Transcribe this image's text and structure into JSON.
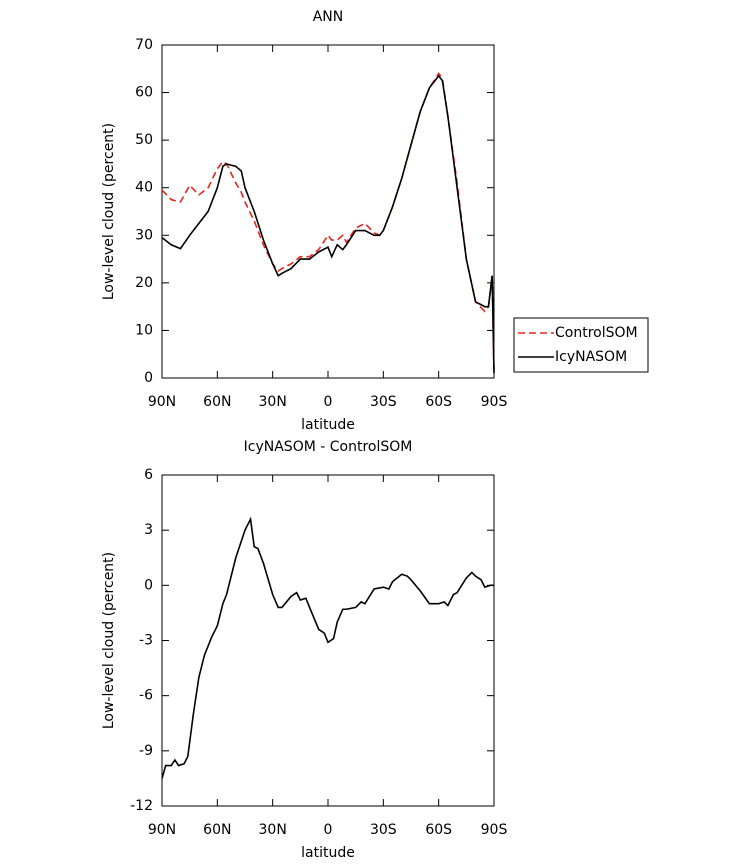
{
  "chart_data": [
    {
      "type": "line",
      "title": "ANN",
      "xlabel": "latitude",
      "ylabel": "Low-level cloud (percent)",
      "x": [
        90,
        85,
        80,
        75,
        70,
        65,
        60,
        57,
        55,
        50,
        47,
        45,
        40,
        35,
        30,
        27,
        25,
        20,
        15,
        10,
        5,
        0,
        -2,
        -5,
        -8,
        -10,
        -15,
        -20,
        -25,
        -28,
        -30,
        -35,
        -40,
        -45,
        -50,
        -55,
        -60,
        -62,
        -65,
        -70,
        -75,
        -80,
        -85,
        -87,
        -89,
        -90
      ],
      "series": [
        {
          "name": "ControlSOM",
          "color": "#e8251f",
          "dashed": true,
          "values": [
            39.5,
            37.5,
            37,
            40.5,
            38.5,
            40,
            44,
            45.5,
            45,
            41,
            39,
            37,
            33,
            28,
            24,
            22.5,
            23,
            24,
            25.5,
            25.5,
            27,
            30,
            29,
            29,
            30,
            28.5,
            31.5,
            32.5,
            30.5,
            30,
            31,
            36,
            42,
            49,
            56,
            61,
            64,
            63,
            55,
            41,
            25,
            16,
            14,
            15,
            21.5,
            1
          ]
        },
        {
          "name": "IcyNASOM",
          "color": "#000000",
          "dashed": false,
          "values": [
            29.5,
            28,
            27.2,
            30,
            32.5,
            35,
            40,
            44.5,
            45,
            44.5,
            43.5,
            40,
            35,
            29,
            24,
            21.5,
            22,
            23,
            25,
            25,
            26.5,
            27.5,
            25.5,
            28,
            27,
            28,
            31,
            31,
            30,
            30,
            31,
            36,
            42,
            49,
            56,
            61,
            63.5,
            62.5,
            55,
            40,
            25,
            16,
            15,
            15,
            21.5,
            1
          ]
        }
      ],
      "xlim": [
        90,
        -90
      ],
      "xticks": [
        {
          "value": 90,
          "label": "90N"
        },
        {
          "value": 60,
          "label": "60N"
        },
        {
          "value": 30,
          "label": "30N"
        },
        0,
        {
          "value": -30,
          "label": "30S"
        },
        {
          "value": -60,
          "label": "60S"
        },
        {
          "value": -90,
          "label": "90S"
        }
      ],
      "ylim": [
        0,
        70
      ],
      "yticks": [
        0,
        10,
        20,
        30,
        40,
        50,
        60,
        70
      ],
      "grid": false,
      "legend": "right"
    },
    {
      "type": "line",
      "title": "IcyNASOM - ControlSOM",
      "xlabel": "latitude",
      "ylabel": "Low-level cloud (percent)",
      "x": [
        90,
        88,
        85,
        83,
        81,
        78,
        76,
        73,
        70,
        67,
        63,
        60,
        57,
        55,
        50,
        45,
        42,
        40,
        38,
        35,
        30,
        27,
        25,
        20,
        17,
        15,
        12,
        10,
        5,
        2,
        0,
        -3,
        -5,
        -8,
        -10,
        -15,
        -18,
        -20,
        -25,
        -30,
        -33,
        -35,
        -40,
        -43,
        -45,
        -50,
        -55,
        -60,
        -63,
        -65,
        -68,
        -70,
        -75,
        -78,
        -80,
        -83,
        -85,
        -88,
        -90
      ],
      "values": [
        -10.5,
        -9.8,
        -9.8,
        -9.5,
        -9.8,
        -9.7,
        -9.3,
        -7,
        -5,
        -3.8,
        -2.8,
        -2.2,
        -1,
        -0.5,
        1.5,
        3,
        3.6,
        2.1,
        2,
        1.2,
        -0.5,
        -1.2,
        -1.2,
        -0.6,
        -0.4,
        -0.8,
        -0.7,
        -1.2,
        -2.4,
        -2.6,
        -3.1,
        -2.9,
        -2,
        -1.3,
        -1.3,
        -1.2,
        -0.9,
        -1,
        -0.2,
        -0.1,
        -0.2,
        0.2,
        0.6,
        0.5,
        0.3,
        -0.3,
        -1,
        -1,
        -0.9,
        -1.1,
        -0.5,
        -0.4,
        0.4,
        0.7,
        0.5,
        0.3,
        -0.1,
        0,
        0
      ],
      "color": "#000000",
      "xlim": [
        90,
        -90
      ],
      "xticks": [
        {
          "value": 90,
          "label": "90N"
        },
        {
          "value": 60,
          "label": "60N"
        },
        {
          "value": 30,
          "label": "30N"
        },
        0,
        {
          "value": -30,
          "label": "30S"
        },
        {
          "value": -60,
          "label": "60S"
        },
        {
          "value": -90,
          "label": "90S"
        }
      ],
      "ylim": [
        -12,
        6
      ],
      "yticks": [
        6,
        3,
        0,
        -3,
        -6,
        -9,
        -12
      ],
      "grid": false
    }
  ]
}
